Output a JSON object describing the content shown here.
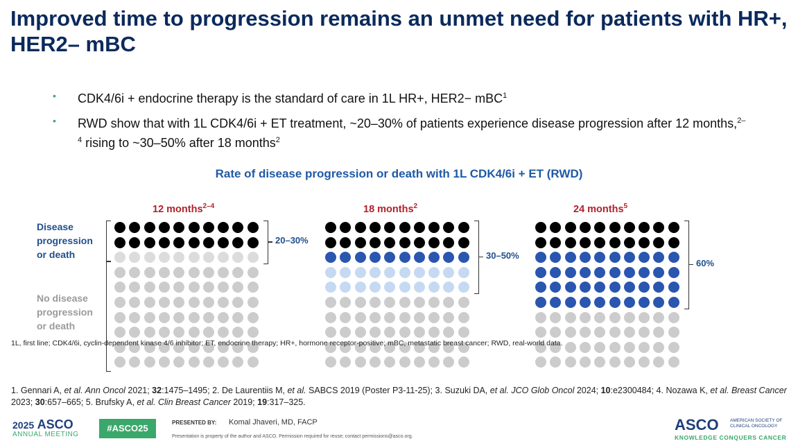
{
  "slide": {
    "title": "Improved time to progression remains an unmet need for patients with HR+, HER2– mBC",
    "bullets": [
      {
        "text": "CDK4/6i + endocrine therapy is the standard of care in 1L HR+, HER2− mBC",
        "sup": "1"
      },
      {
        "text_a": "RWD show that with 1L CDK4/6i + ET treatment, ~20–30% of patients experience disease progression after 12 months,",
        "sup_a": "2–4",
        "text_b": " rising to ~30–50% after 18 months",
        "sup_b": "2"
      }
    ]
  },
  "chart_data": {
    "type": "dot-matrix",
    "title": "Rate of disease progression or death with 1L CDK4/6i + ET (RWD)",
    "legend": {
      "progression_label": "Disease progression or death",
      "no_progression_label": "No disease progression or death"
    },
    "grid": {
      "rows": 10,
      "cols": 10
    },
    "panels": [
      {
        "label": "12 months",
        "ref": "2–4",
        "black_rows": 2,
        "blue_rows": 0,
        "light_rows": 0,
        "gray_rows": 8,
        "range_label": "20–30%",
        "bracket_rows": 3
      },
      {
        "label": "18 months",
        "ref": "2",
        "black_rows": 2,
        "blue_rows": 1,
        "light_rows": 2,
        "gray_rows": 5,
        "range_label": "30–50%",
        "bracket_rows": 5
      },
      {
        "label": "24 months",
        "ref": "5",
        "black_rows": 2,
        "blue_rows": 4,
        "light_rows": 0,
        "gray_rows": 4,
        "range_label": "60%",
        "bracket_rows": 6
      }
    ],
    "colors": {
      "black": "#000000",
      "blue": "#2a56b0",
      "light": "#c6d9f2",
      "gray": "#cccccc",
      "first_gray_row": "#dcdcdc"
    }
  },
  "abbreviations": "1L, first line; CDK4/6i, cyclin-dependent kinase 4/6 inhibitor; ET, endocrine therapy; HR+, hormone receptor-positive; mBC, metastatic breast cancer; RWD, real-world data.",
  "references": [
    {
      "n": "1. ",
      "author": "Gennari A, ",
      "etal": "et al. ",
      "journal": "Ann Oncol",
      "year": " 2021; ",
      "vol": "32",
      "pages": ":1475–1495; "
    },
    {
      "n": "2. ",
      "author": "De Laurentiis M, ",
      "etal": "et al. ",
      "journal": "",
      "year": "SABCS 2019 (Poster P3-11-25); ",
      "vol": "",
      "pages": ""
    },
    {
      "n": "3. ",
      "author": "Suzuki DA, ",
      "etal": "et al. ",
      "journal": "JCO Glob Oncol",
      "year": " 2024; ",
      "vol": "10",
      "pages": ":e2300484; "
    },
    {
      "n": "4. ",
      "author": "Nozawa K, ",
      "etal": "et al. ",
      "journal": "Breast Cancer",
      "year": " 2023; ",
      "vol": "30",
      "pages": ":657–665; "
    },
    {
      "n": "5. ",
      "author": "Brufsky A, ",
      "etal": "et al. ",
      "journal": "Clin Breast Cancer",
      "year": " 2019; ",
      "vol": "19",
      "pages": ":317–325."
    }
  ],
  "footer": {
    "meeting_year": "2025",
    "meeting_name": "ASCO",
    "meeting_sub": "ANNUAL MEETING",
    "hashtag": "#ASCO25",
    "presented_by": "PRESENTED BY:",
    "presenter": "Komal Jhaveri, MD, FACP",
    "disclaimer": "Presentation is property of the author and ASCO. Permission required for reuse; contact permissions@asco.org.",
    "logo_name": "ASCO",
    "logo_society": "AMERICAN SOCIETY OF CLINICAL ONCOLOGY",
    "logo_tagline": "KNOWLEDGE CONQUERS CANCER"
  }
}
